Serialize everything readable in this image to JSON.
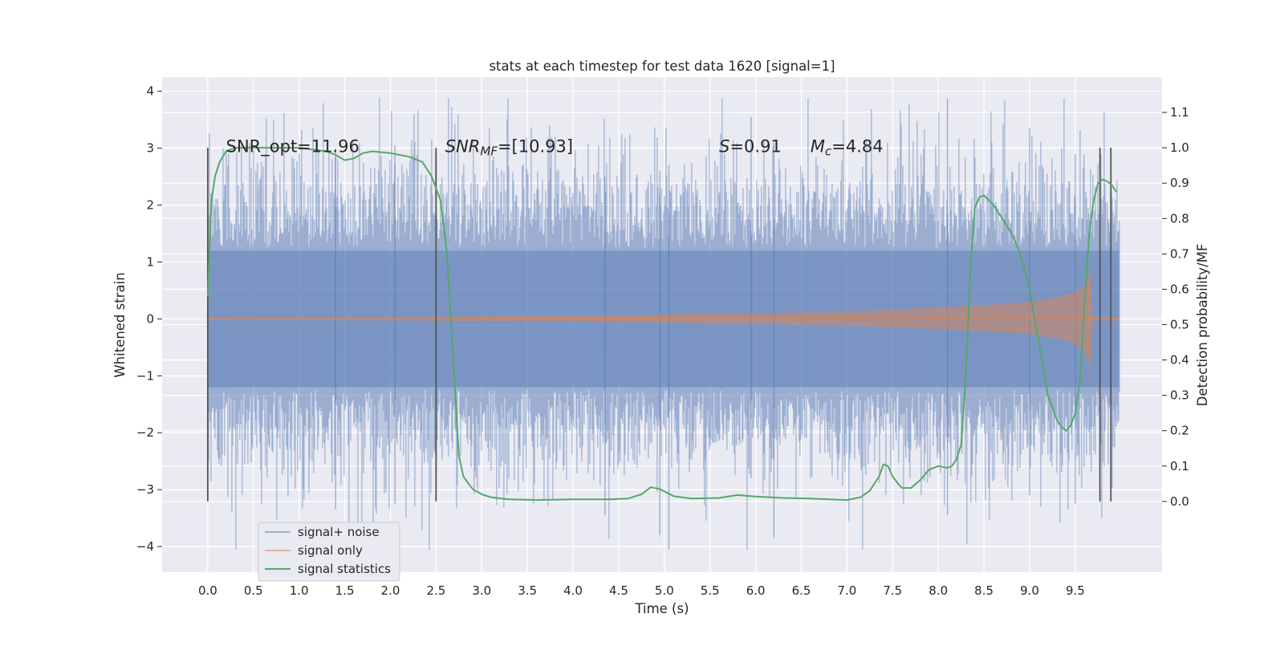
{
  "chart_data": {
    "type": "line",
    "title": "stats at each timestep for test data 1620 [signal=1]",
    "xlabel": "Time (s)",
    "ylabel_left": "Whitened strain",
    "ylabel_right": "Detection probability/MF",
    "xlim": [
      -0.5,
      10.45
    ],
    "ylim_left": [
      -4.45,
      4.25
    ],
    "ylim_right": [
      -0.2,
      1.2
    ],
    "grid": true,
    "x_ticks": [
      0.0,
      0.5,
      1.0,
      1.5,
      2.0,
      2.5,
      3.0,
      3.5,
      4.0,
      4.5,
      5.0,
      5.5,
      6.0,
      6.5,
      7.0,
      7.5,
      8.0,
      8.5,
      9.0,
      9.5
    ],
    "x_tick_labels": [
      "0.0",
      "0.5",
      "1.0",
      "1.5",
      "2.0",
      "2.5",
      "3.0",
      "3.5",
      "4.0",
      "4.5",
      "5.0",
      "5.5",
      "6.0",
      "6.5",
      "7.0",
      "7.5",
      "8.0",
      "8.5",
      "9.0",
      "9.5"
    ],
    "y_left_ticks": [
      4,
      3,
      2,
      1,
      0,
      -1,
      -2,
      -3,
      -4
    ],
    "y_left_tick_labels": [
      "4",
      "3",
      "2",
      "1",
      "0",
      "−1",
      "−2",
      "−3",
      "−4"
    ],
    "y_right_ticks": [
      1.1,
      1.0,
      0.9,
      0.8,
      0.7,
      0.6,
      0.5,
      0.4,
      0.3,
      0.2,
      0.1,
      0.0
    ],
    "y_right_tick_labels": [
      "1.1",
      "1.0",
      "0.9",
      "0.8",
      "0.7",
      "0.6",
      "0.5",
      "0.4",
      "0.3",
      "0.2",
      "0.1",
      "0.0"
    ],
    "legend_position": "lower-left",
    "series": [
      {
        "name": "signal+ noise",
        "axis": "left",
        "color": "#4c72b0",
        "kind": "noise",
        "x_range": [
          0.0,
          9.98
        ],
        "typical_amplitude": 1.2,
        "max": 3.88,
        "min": -4.05
      },
      {
        "name": "signal only",
        "axis": "left",
        "color": "#dd8452",
        "kind": "chirp",
        "x_range": [
          0.0,
          9.98
        ],
        "envelope_x": [
          0.0,
          2.0,
          4.0,
          6.0,
          7.0,
          8.0,
          8.5,
          9.0,
          9.3,
          9.5,
          9.6,
          9.66,
          9.69,
          9.98
        ],
        "envelope_y": [
          0.02,
          0.03,
          0.06,
          0.1,
          0.13,
          0.2,
          0.24,
          0.3,
          0.38,
          0.48,
          0.6,
          0.8,
          0.03,
          0.03
        ],
        "merger_time": 9.66
      },
      {
        "name": "signal statistics",
        "axis": "right",
        "color": "#55a868",
        "x": [
          0.0,
          0.04,
          0.08,
          0.13,
          0.2,
          0.3,
          0.5,
          1.0,
          1.3,
          1.4,
          1.5,
          1.6,
          1.7,
          1.8,
          2.0,
          2.2,
          2.35,
          2.45,
          2.55,
          2.62,
          2.7,
          2.75,
          2.8,
          2.9,
          3.0,
          3.1,
          3.3,
          3.6,
          4.0,
          4.4,
          4.6,
          4.75,
          4.85,
          4.95,
          5.1,
          5.3,
          5.6,
          5.8,
          6.0,
          6.3,
          6.6,
          7.0,
          7.15,
          7.25,
          7.35,
          7.4,
          7.45,
          7.5,
          7.6,
          7.7,
          7.8,
          7.9,
          8.0,
          8.1,
          8.15,
          8.2,
          8.25,
          8.3,
          8.35,
          8.4,
          8.45,
          8.5,
          8.6,
          8.7,
          8.8,
          8.9,
          9.0,
          9.1,
          9.2,
          9.3,
          9.35,
          9.4,
          9.45,
          9.5,
          9.55,
          9.6,
          9.65,
          9.7,
          9.75,
          9.8,
          9.85,
          9.9,
          9.95
        ],
        "y": [
          0.58,
          0.85,
          0.92,
          0.96,
          0.99,
          1.0,
          1.0,
          1.0,
          0.99,
          0.98,
          0.965,
          0.97,
          0.985,
          0.99,
          0.985,
          0.975,
          0.96,
          0.92,
          0.85,
          0.7,
          0.35,
          0.13,
          0.07,
          0.035,
          0.02,
          0.012,
          0.006,
          0.004,
          0.006,
          0.006,
          0.008,
          0.02,
          0.04,
          0.035,
          0.015,
          0.008,
          0.01,
          0.018,
          0.014,
          0.01,
          0.008,
          0.004,
          0.012,
          0.03,
          0.07,
          0.105,
          0.1,
          0.07,
          0.038,
          0.038,
          0.06,
          0.09,
          0.1,
          0.095,
          0.1,
          0.12,
          0.16,
          0.35,
          0.65,
          0.83,
          0.86,
          0.865,
          0.84,
          0.8,
          0.76,
          0.7,
          0.6,
          0.45,
          0.3,
          0.23,
          0.21,
          0.2,
          0.215,
          0.25,
          0.34,
          0.55,
          0.75,
          0.85,
          0.9,
          0.91,
          0.905,
          0.895,
          0.875
        ]
      }
    ],
    "vertical_lines": [
      0.0,
      2.5,
      9.77,
      9.89
    ],
    "vertical_lines_range": [
      -0.0,
      1.0
    ],
    "annotations": [
      {
        "plain": "SNR_opt=11.96",
        "x": 0.2,
        "y": 0.99
      },
      {
        "math": "SNR",
        "sub": "MF",
        "sub_italic": true,
        "rest": "=[10.93]",
        "x": 2.6,
        "y": 0.99
      },
      {
        "math": "S",
        "sub": "",
        "rest": "=0.91",
        "x": 5.6,
        "y": 0.99
      },
      {
        "math": "M",
        "sub": "c",
        "sub_italic": true,
        "rest": "=4.84",
        "x": 6.6,
        "y": 0.99
      }
    ]
  }
}
